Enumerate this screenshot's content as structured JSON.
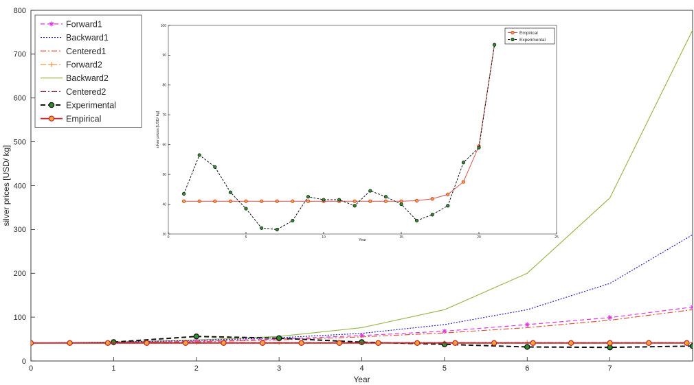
{
  "chart_data": [
    {
      "type": "line",
      "xlabel": "Year",
      "ylabel": "silver prices [USD/ kg]",
      "xlim": [
        0,
        8
      ],
      "ylim": [
        0,
        800
      ],
      "xticks": [
        0,
        1,
        2,
        3,
        4,
        5,
        6,
        7
      ],
      "yticks": [
        0,
        100,
        200,
        300,
        400,
        500,
        600,
        700,
        800
      ],
      "legend_position": "top-left",
      "series": [
        {
          "name": "Forward1",
          "color": "#e033e0",
          "dash": "6,4",
          "marker": "star",
          "x": [
            0,
            1,
            2,
            3,
            4,
            5,
            6,
            7,
            8
          ],
          "y": [
            41,
            42,
            45,
            50,
            58,
            68,
            83,
            99,
            123
          ]
        },
        {
          "name": "Backward1",
          "color": "#1f1fbf",
          "dash": "2,2",
          "marker": "none",
          "x": [
            0,
            1,
            2,
            3,
            4,
            5,
            6,
            7,
            8
          ],
          "y": [
            41,
            43,
            47,
            53,
            63,
            83,
            117,
            177,
            288
          ]
        },
        {
          "name": "Centered1",
          "color": "#e0563c",
          "dash": "8,3,2,3",
          "marker": "none",
          "x": [
            0,
            1,
            2,
            3,
            4,
            5,
            6,
            7,
            8
          ],
          "y": [
            41,
            42,
            44,
            48,
            55,
            64,
            76,
            93,
            117
          ]
        },
        {
          "name": "Forward2",
          "color": "#f08c3c",
          "dash": "8,3,2,3",
          "marker": "plus",
          "x": [
            0,
            1,
            2,
            3,
            4,
            5,
            6,
            7,
            8
          ],
          "y": [
            41,
            41,
            42,
            42,
            42,
            42,
            42,
            42,
            42
          ]
        },
        {
          "name": "Backward2",
          "color": "#9ab84e",
          "dash": "",
          "marker": "none",
          "x": [
            0,
            1,
            2,
            3,
            4,
            5,
            6,
            7,
            8
          ],
          "y": [
            41,
            43,
            48,
            56,
            76,
            117,
            200,
            372,
            755
          ]
        },
        {
          "name": "Centered2",
          "color": "#8a2a4a",
          "dash": "8,3,2,3",
          "marker": "none",
          "x": [
            0,
            1,
            2,
            3,
            4,
            5,
            6,
            7,
            8
          ],
          "y": [
            41,
            41,
            42,
            42,
            42,
            42,
            42,
            42,
            42
          ]
        },
        {
          "name": "Experimental",
          "color": "#111111",
          "dash": "7,4",
          "marker": "circle-green",
          "x": [
            1,
            2,
            3,
            4,
            5,
            6,
            7,
            8
          ],
          "y": [
            43,
            56,
            52,
            43,
            38,
            32,
            31,
            34
          ]
        },
        {
          "name": "Empirical",
          "color": "#c0282d",
          "dash": "",
          "marker": "circle-orange",
          "x": [
            0,
            0.47,
            0.93,
            1.4,
            1.87,
            2.33,
            2.8,
            3.27,
            3.73,
            4.2,
            4.67,
            5.13,
            5.6,
            6.07,
            6.53,
            7.0,
            7.47,
            7.93
          ],
          "y": [
            41,
            41,
            41,
            41,
            41,
            41,
            41,
            41,
            41,
            41,
            41,
            41,
            41,
            41,
            41,
            41,
            41,
            41
          ]
        }
      ]
    },
    {
      "type": "line",
      "xlabel": "Year",
      "ylabel": "silver prices [USD/ kg]",
      "xlim": [
        0,
        25
      ],
      "ylim": [
        30,
        100
      ],
      "xticks": [
        0,
        5,
        10,
        15,
        20,
        25
      ],
      "yticks": [
        30,
        40,
        50,
        60,
        70,
        80,
        90,
        100
      ],
      "legend_position": "top-right",
      "series": [
        {
          "name": "Empirical",
          "color": "#d9534f",
          "dash": "",
          "marker": "circle-orange",
          "x": [
            1,
            2,
            3,
            4,
            5,
            6,
            7,
            8,
            9,
            10,
            11,
            12,
            13,
            14,
            15,
            16,
            17,
            18,
            19,
            20,
            21
          ],
          "y": [
            41,
            41,
            41,
            41,
            41,
            41,
            41,
            41,
            41,
            41,
            41,
            41,
            41,
            41,
            41,
            41.2,
            41.8,
            43.3,
            47.5,
            59.5,
            93.5
          ]
        },
        {
          "name": "Experimental",
          "color": "#111111",
          "dash": "3,2",
          "marker": "circle-green",
          "x": [
            1,
            2,
            3,
            4,
            5,
            6,
            7,
            8,
            9,
            10,
            11,
            12,
            13,
            14,
            15,
            16,
            17,
            18,
            19,
            20,
            21
          ],
          "y": [
            43.5,
            56.5,
            52.5,
            44,
            38.5,
            32,
            31.5,
            34.5,
            42.5,
            41.5,
            41.5,
            39.5,
            44.5,
            42.5,
            40,
            34.5,
            36.5,
            39.5,
            54,
            59,
            93.5
          ]
        }
      ]
    }
  ]
}
